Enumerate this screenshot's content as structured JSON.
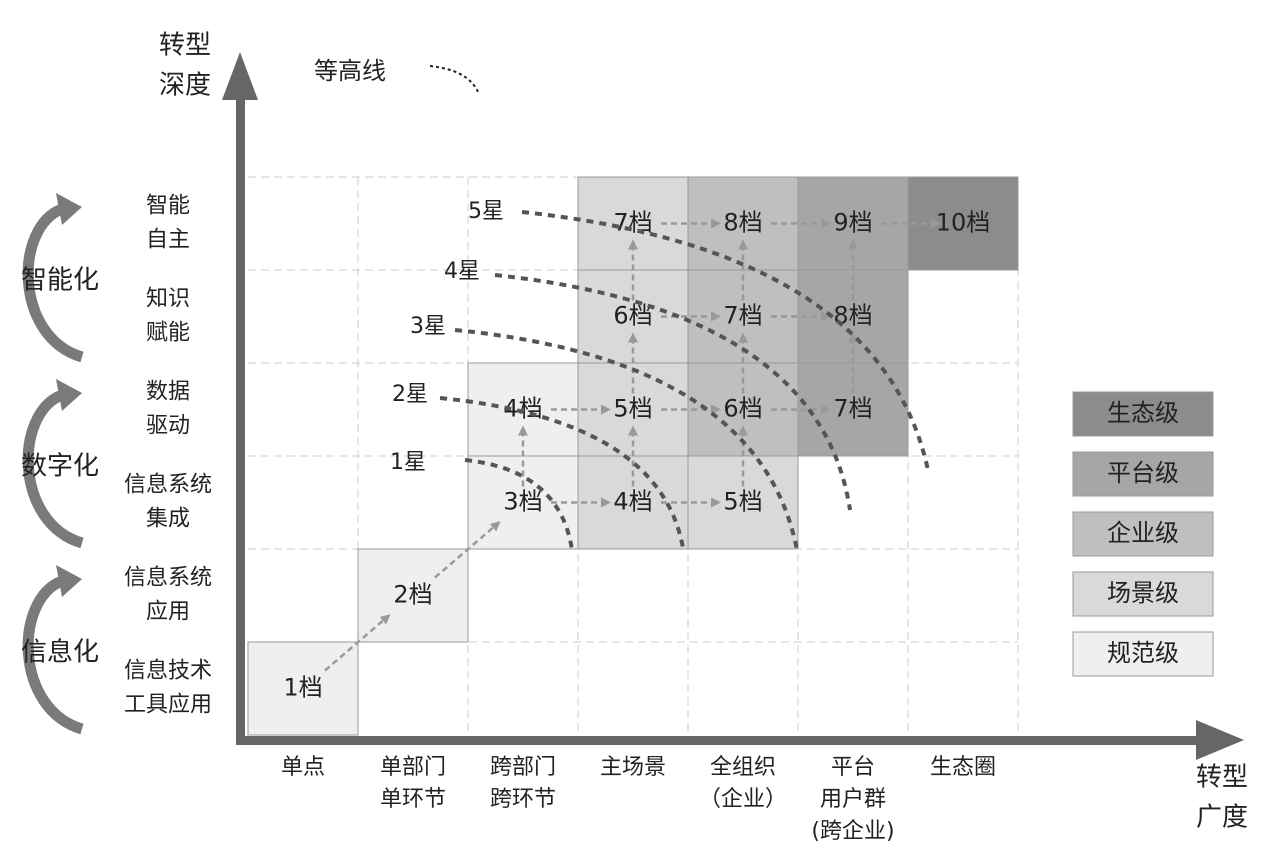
{
  "y_axis_title": [
    "转型",
    "深度"
  ],
  "x_axis_title": [
    "转型",
    "广度"
  ],
  "contour_label": "等高线",
  "x_categories": [
    [
      "单点"
    ],
    [
      "单部门",
      "单环节"
    ],
    [
      "跨部门",
      "跨环节"
    ],
    [
      "主场景"
    ],
    [
      "全组织",
      "（企业）"
    ],
    [
      "平台",
      "用户群",
      "(跨企业)"
    ],
    [
      "生态圈"
    ]
  ],
  "y_levels": [
    [
      "信息技术",
      "工具应用"
    ],
    [
      "信息系统",
      "应用"
    ],
    [
      "信息系统",
      "集成"
    ],
    [
      "数据",
      "驱动"
    ],
    [
      "知识",
      "赋能"
    ],
    [
      "智能",
      "自主"
    ]
  ],
  "phases": [
    "信息化",
    "数字化",
    "智能化"
  ],
  "stars": [
    "1星",
    "2星",
    "3星",
    "4星",
    "5星"
  ],
  "grid": [
    [
      {
        "label": "1档",
        "level": "规范级"
      },
      null,
      null,
      null,
      null,
      null,
      null
    ],
    [
      null,
      {
        "label": "2档",
        "level": "规范级"
      },
      null,
      null,
      null,
      null,
      null
    ],
    [
      null,
      null,
      {
        "label": "3档",
        "level": "规范级"
      },
      {
        "label": "4档",
        "level": "场景级"
      },
      {
        "label": "5档",
        "level": "场景级"
      },
      null,
      null
    ],
    [
      null,
      null,
      {
        "label": "4档",
        "level": "规范级"
      },
      {
        "label": "5档",
        "level": "场景级"
      },
      {
        "label": "6档",
        "level": "企业级"
      },
      {
        "label": "7档",
        "level": "平台级"
      },
      null
    ],
    [
      null,
      null,
      null,
      {
        "label": "6档",
        "level": "场景级"
      },
      {
        "label": "7档",
        "level": "企业级"
      },
      {
        "label": "8档",
        "level": "平台级"
      },
      null
    ],
    [
      null,
      null,
      null,
      {
        "label": "7档",
        "level": "场景级"
      },
      {
        "label": "8档",
        "level": "企业级"
      },
      {
        "label": "9档",
        "level": "平台级"
      },
      {
        "label": "10档",
        "level": "生态级"
      }
    ]
  ],
  "legend": [
    {
      "label": "生态级",
      "color": "#8c8c8c"
    },
    {
      "label": "平台级",
      "color": "#a6a6a6"
    },
    {
      "label": "企业级",
      "color": "#bfbfbf"
    },
    {
      "label": "场景级",
      "color": "#d9d9d9"
    },
    {
      "label": "规范级",
      "color": "#efefef"
    }
  ]
}
